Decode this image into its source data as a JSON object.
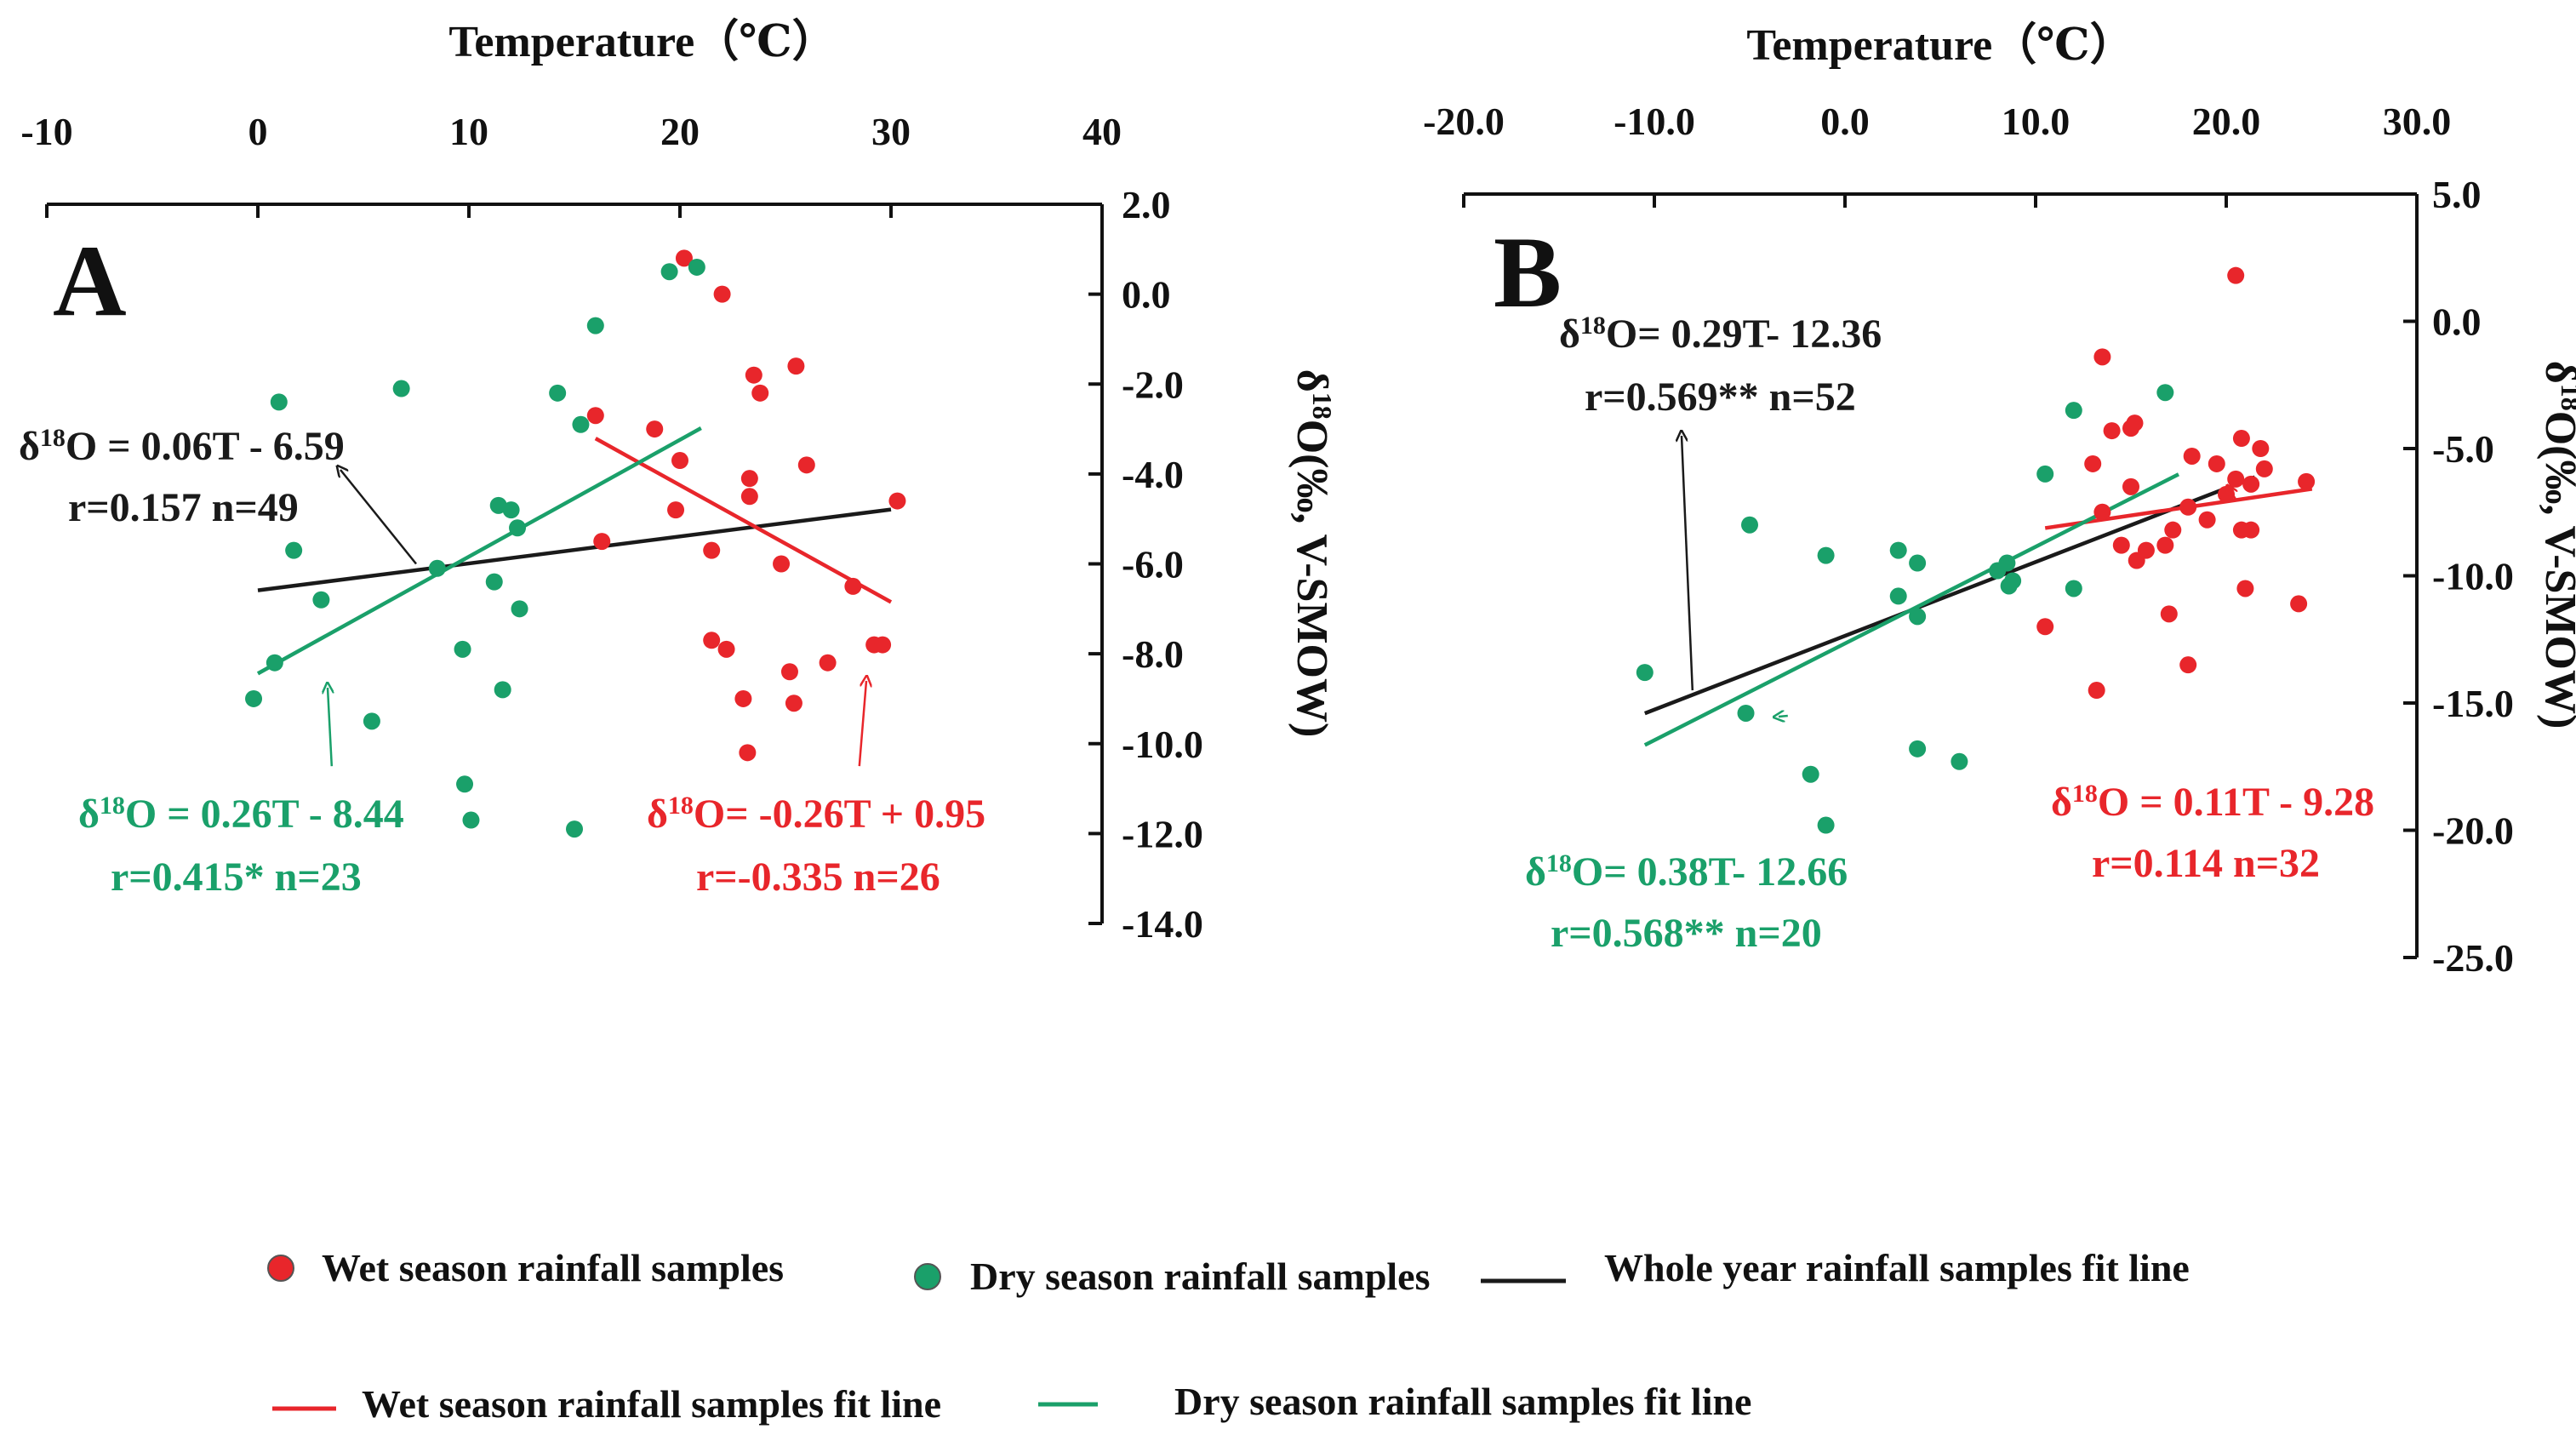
{
  "chart_data": [
    {
      "type": "scatter",
      "panel_label": "A",
      "xlabel": "Temperature（℃）",
      "ylabel": "δ18O(‰, V-SMOW)",
      "xlim": [
        -10,
        40
      ],
      "ylim": [
        -14,
        2
      ],
      "x_ticks": [
        "-10",
        "0",
        "10",
        "20",
        "30",
        "40"
      ],
      "y_ticks": [
        "2.0",
        "0.0",
        "-2.0",
        "-4.0",
        "-6.0",
        "-8.0",
        "-10.0",
        "-12.0",
        "-14.0"
      ],
      "x_axis_position": "top",
      "y_axis_position": "right",
      "series": [
        {
          "name": "Wet season rainfall samples",
          "color": "#e8262b",
          "points": [
            [
              20.2,
              0.8
            ],
            [
              22.0,
              0.0
            ],
            [
              20.0,
              -3.7
            ],
            [
              23.5,
              -1.8
            ],
            [
              23.8,
              -2.2
            ],
            [
              25.5,
              -1.6
            ],
            [
              16.0,
              -2.7
            ],
            [
              18.8,
              -3.0
            ],
            [
              26.0,
              -3.8
            ],
            [
              23.3,
              -4.1
            ],
            [
              23.3,
              -4.5
            ],
            [
              19.8,
              -4.8
            ],
            [
              16.3,
              -5.5
            ],
            [
              21.5,
              -5.7
            ],
            [
              24.8,
              -6.0
            ],
            [
              28.2,
              -6.5
            ],
            [
              21.5,
              -7.7
            ],
            [
              22.2,
              -7.9
            ],
            [
              27.0,
              -8.2
            ],
            [
              25.2,
              -8.4
            ],
            [
              29.2,
              -7.8
            ],
            [
              29.6,
              -7.8
            ],
            [
              23.0,
              -9.0
            ],
            [
              25.4,
              -9.1
            ],
            [
              23.2,
              -10.2
            ],
            [
              30.3,
              -4.6
            ]
          ]
        },
        {
          "name": "Dry season rainfall samples",
          "color": "#1aa06a",
          "points": [
            [
              19.5,
              0.5
            ],
            [
              20.8,
              0.6
            ],
            [
              16.0,
              -0.7
            ],
            [
              14.2,
              -2.2
            ],
            [
              15.3,
              -2.9
            ],
            [
              6.8,
              -2.1
            ],
            [
              1.0,
              -2.4
            ],
            [
              1.7,
              -5.7
            ],
            [
              3.0,
              -6.8
            ],
            [
              8.5,
              -6.1
            ],
            [
              11.4,
              -4.7
            ],
            [
              12.0,
              -4.8
            ],
            [
              12.3,
              -5.2
            ],
            [
              11.2,
              -6.4
            ],
            [
              12.4,
              -7.0
            ],
            [
              9.7,
              -7.9
            ],
            [
              11.6,
              -8.8
            ],
            [
              0.8,
              -8.2
            ],
            [
              -0.2,
              -9.0
            ],
            [
              5.4,
              -9.5
            ],
            [
              9.8,
              -10.9
            ],
            [
              10.1,
              -11.7
            ],
            [
              15.0,
              -11.9
            ]
          ]
        }
      ],
      "fit_lines": [
        {
          "name": "Whole year rainfall samples fit line",
          "color": "#1a1a1a",
          "slope": 0.06,
          "intercept": -6.59,
          "x_range": [
            0,
            30
          ]
        },
        {
          "name": "Wet season rainfall samples fit line",
          "color": "#e8262b",
          "slope": -0.26,
          "intercept": 0.95,
          "x_range": [
            16,
            30
          ]
        },
        {
          "name": "Dry season rainfall samples fit line",
          "color": "#1aa06a",
          "slope": 0.26,
          "intercept": -8.44,
          "x_range": [
            0,
            21
          ]
        }
      ],
      "annotations": [
        {
          "eq_prefix": "δ",
          "eq_sup": "18",
          "eq_rest": "O = 0.06T - 6.59",
          "stat": "r=0.157 n=49",
          "color": "#1a1a1a",
          "arrow_to": [
            7.5,
            -6.0
          ]
        },
        {
          "eq_prefix": "δ",
          "eq_sup": "18",
          "eq_rest": "O = 0.26T - 8.44",
          "stat": "r=0.415*  n=23",
          "color": "#1aa06a",
          "arrow_to": [
            3.5,
            -10.5
          ]
        },
        {
          "eq_prefix": "δ",
          "eq_sup": "18",
          "eq_rest": "O= -0.26T + 0.95",
          "stat": "r=-0.335 n=26",
          "color": "#e8262b",
          "arrow_to": [
            28.5,
            -10.5
          ]
        }
      ]
    },
    {
      "type": "scatter",
      "panel_label": "B",
      "xlabel": "Temperature（℃）",
      "ylabel": "δ18O(‰, V-SMOW)",
      "xlim": [
        -20,
        30
      ],
      "ylim": [
        -25,
        5
      ],
      "x_ticks": [
        "-20.0",
        "-10.0",
        "0.0",
        "10.0",
        "20.0",
        "30.0"
      ],
      "y_ticks": [
        "5.0",
        "0.0",
        "-5.0",
        "-10.0",
        "-15.0",
        "-20.0",
        "-25.0"
      ],
      "x_axis_position": "top",
      "y_axis_position": "right",
      "series": [
        {
          "name": "Wet season rainfall samples",
          "color": "#e8262b",
          "points": [
            [
              20.5,
              1.8
            ],
            [
              13.5,
              -1.4
            ],
            [
              14.0,
              -4.3
            ],
            [
              15.0,
              -4.2
            ],
            [
              15.2,
              -4.0
            ],
            [
              13.0,
              -5.6
            ],
            [
              15.0,
              -6.5
            ],
            [
              13.5,
              -7.5
            ],
            [
              18.2,
              -5.3
            ],
            [
              20.8,
              -4.6
            ],
            [
              21.8,
              -5.0
            ],
            [
              19.5,
              -5.6
            ],
            [
              20.5,
              -6.2
            ],
            [
              21.3,
              -6.4
            ],
            [
              22.0,
              -5.8
            ],
            [
              24.2,
              -6.3
            ],
            [
              18.0,
              -7.3
            ],
            [
              17.2,
              -8.2
            ],
            [
              19.0,
              -7.8
            ],
            [
              20.8,
              -8.2
            ],
            [
              21.3,
              -8.2
            ],
            [
              14.5,
              -8.8
            ],
            [
              15.8,
              -9.0
            ],
            [
              16.8,
              -8.8
            ],
            [
              15.3,
              -9.4
            ],
            [
              21.0,
              -10.5
            ],
            [
              17.0,
              -11.5
            ],
            [
              23.8,
              -11.1
            ],
            [
              10.5,
              -12.0
            ],
            [
              18.0,
              -13.5
            ],
            [
              13.2,
              -14.5
            ],
            [
              20.0,
              -6.8
            ]
          ]
        },
        {
          "name": "Dry season rainfall samples",
          "color": "#1aa06a",
          "points": [
            [
              12.0,
              -3.5
            ],
            [
              16.8,
              -2.8
            ],
            [
              10.5,
              -6.0
            ],
            [
              -5.0,
              -8.0
            ],
            [
              -1.0,
              -9.2
            ],
            [
              2.8,
              -9.0
            ],
            [
              3.8,
              -9.5
            ],
            [
              8.5,
              -9.5
            ],
            [
              8.0,
              -9.8
            ],
            [
              8.8,
              -10.2
            ],
            [
              8.6,
              -10.4
            ],
            [
              12.0,
              -10.5
            ],
            [
              2.8,
              -10.8
            ],
            [
              3.8,
              -11.6
            ],
            [
              -10.5,
              -13.8
            ],
            [
              -5.2,
              -15.4
            ],
            [
              3.8,
              -16.8
            ],
            [
              6.0,
              -17.3
            ],
            [
              -1.8,
              -17.8
            ],
            [
              -1.0,
              -19.8
            ]
          ]
        }
      ],
      "fit_lines": [
        {
          "name": "Whole year rainfall samples fit line",
          "color": "#1a1a1a",
          "slope": 0.29,
          "intercept": -12.36,
          "x_range": [
            -10.5,
            21.5
          ]
        },
        {
          "name": "Wet season rainfall samples fit line",
          "color": "#e8262b",
          "slope": 0.11,
          "intercept": -9.28,
          "x_range": [
            10.5,
            24.5
          ]
        },
        {
          "name": "Dry season rainfall samples fit line",
          "color": "#1aa06a",
          "slope": 0.38,
          "intercept": -12.66,
          "x_range": [
            -10.5,
            17.5
          ]
        }
      ],
      "annotations": [
        {
          "eq_prefix": "δ",
          "eq_sup": "18",
          "eq_rest": "O= 0.29T- 12.36",
          "stat": "r=0.569** n=52",
          "color": "#1a1a1a",
          "arrow_to": [
            -8.0,
            -14.5
          ]
        },
        {
          "eq_prefix": "δ",
          "eq_sup": "18",
          "eq_rest": "O= 0.38T- 12.66",
          "stat": "r=0.568** n=20",
          "color": "#1aa06a",
          "arrow_to": [
            -3.0,
            -15.5
          ]
        },
        {
          "eq_prefix": "δ",
          "eq_sup": "18",
          "eq_rest": "O = 0.11T - 9.28",
          "stat": "r=0.114  n=32",
          "color": "#e8262b",
          "arrow_to": [
            20.5,
            -7.0
          ]
        }
      ]
    }
  ],
  "legend": {
    "placement": "bottom",
    "items": [
      {
        "label": "Wet season rainfall samples",
        "kind": "marker",
        "color": "#e8262b"
      },
      {
        "label": "Dry season rainfall samples",
        "kind": "marker",
        "color": "#1aa06a"
      },
      {
        "label": "Whole year rainfall samples fit line",
        "kind": "line",
        "color": "#1a1a1a"
      },
      {
        "label": "Wet season rainfall  samples fit line",
        "kind": "line",
        "color": "#e8262b"
      },
      {
        "label": "Dry season rainfall samples fit line",
        "kind": "line",
        "color": "#1aa06a"
      }
    ]
  }
}
